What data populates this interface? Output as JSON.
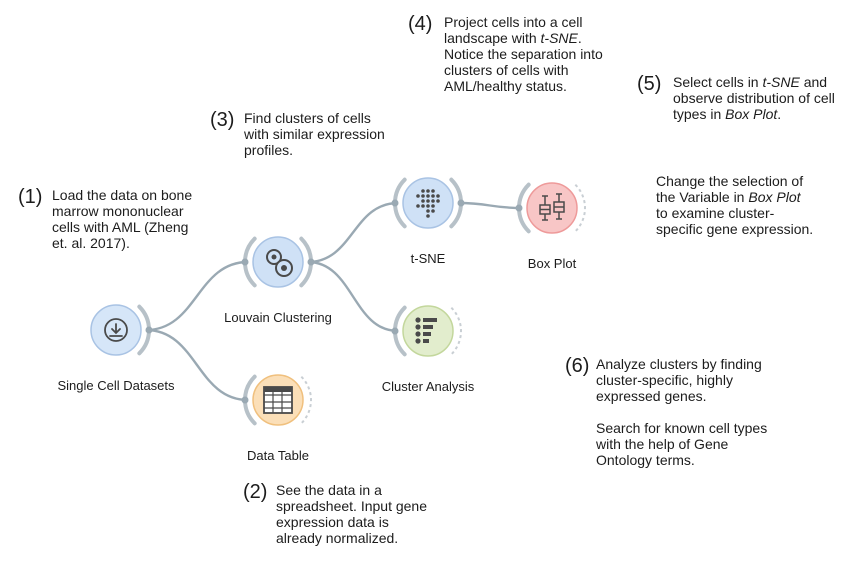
{
  "widgets": [
    {
      "id": "single_cell_datasets",
      "label": "Single Cell Datasets",
      "icon": "download-icon",
      "fill": "#d6e6f8",
      "stroke": "#a9c3e4"
    },
    {
      "id": "louvain_clustering",
      "label": "Louvain Clustering",
      "icon": "cluster-circles-icon",
      "fill": "#cfe1f6",
      "stroke": "#a9c3e4"
    },
    {
      "id": "data_table",
      "label": "Data Table",
      "icon": "table-grid-icon",
      "fill": "#fbdfb8",
      "stroke": "#f0c07e"
    },
    {
      "id": "tsne",
      "label": "t-SNE",
      "icon": "dot-grid-icon",
      "fill": "#cfe1f6",
      "stroke": "#a9c3e4"
    },
    {
      "id": "box_plot",
      "label": "Box Plot",
      "icon": "box-plot-icon",
      "fill": "#f8c6c6",
      "stroke": "#ee9a9a"
    },
    {
      "id": "cluster_analysis",
      "label": "Cluster Analysis",
      "icon": "list-bullets-icon",
      "fill": "#e2edcd",
      "stroke": "#c3d79c"
    }
  ],
  "links": [
    {
      "from": "single_cell_datasets",
      "to": "louvain_clustering"
    },
    {
      "from": "single_cell_datasets",
      "to": "data_table"
    },
    {
      "from": "louvain_clustering",
      "to": "tsne"
    },
    {
      "from": "louvain_clustering",
      "to": "cluster_analysis"
    },
    {
      "from": "tsne",
      "to": "box_plot"
    }
  ],
  "notes": {
    "n1": {
      "num": "(1)",
      "html": "Load the data on bone marrow mononuclear cells with AML (Zheng et. al. 2017)."
    },
    "n2": {
      "num": "(2)",
      "html": "See the data in a spreadsheet. Input gene expression data is already normalized."
    },
    "n3": {
      "num": "(3)",
      "html": "Find clusters of cells with similar expression profiles."
    },
    "n4": {
      "num": "(4)",
      "html": "Project cells into a cell landscape with <em>t-SNE</em>. Notice the separation into clusters of cells with AML/healthy status."
    },
    "n5": {
      "num": "(5)",
      "html": "Select cells in <em>t-SNE</em> and observe distribution of cell types in <em>Box Plot</em>."
    },
    "n5b": {
      "num": "",
      "html": "Change the selection of the Variable in <em>Box Plot</em> to examine cluster-specific gene expression."
    },
    "n6": {
      "num": "(6)",
      "html": "Analyze clusters by finding cluster-specific, highly expressed genes.<br><br>Search for known cell types with the help of Gene Ontology terms."
    }
  },
  "colors": {
    "link": "#9aa9b3",
    "arc": "#b7c1c8",
    "icon": "#4a4a4a"
  }
}
